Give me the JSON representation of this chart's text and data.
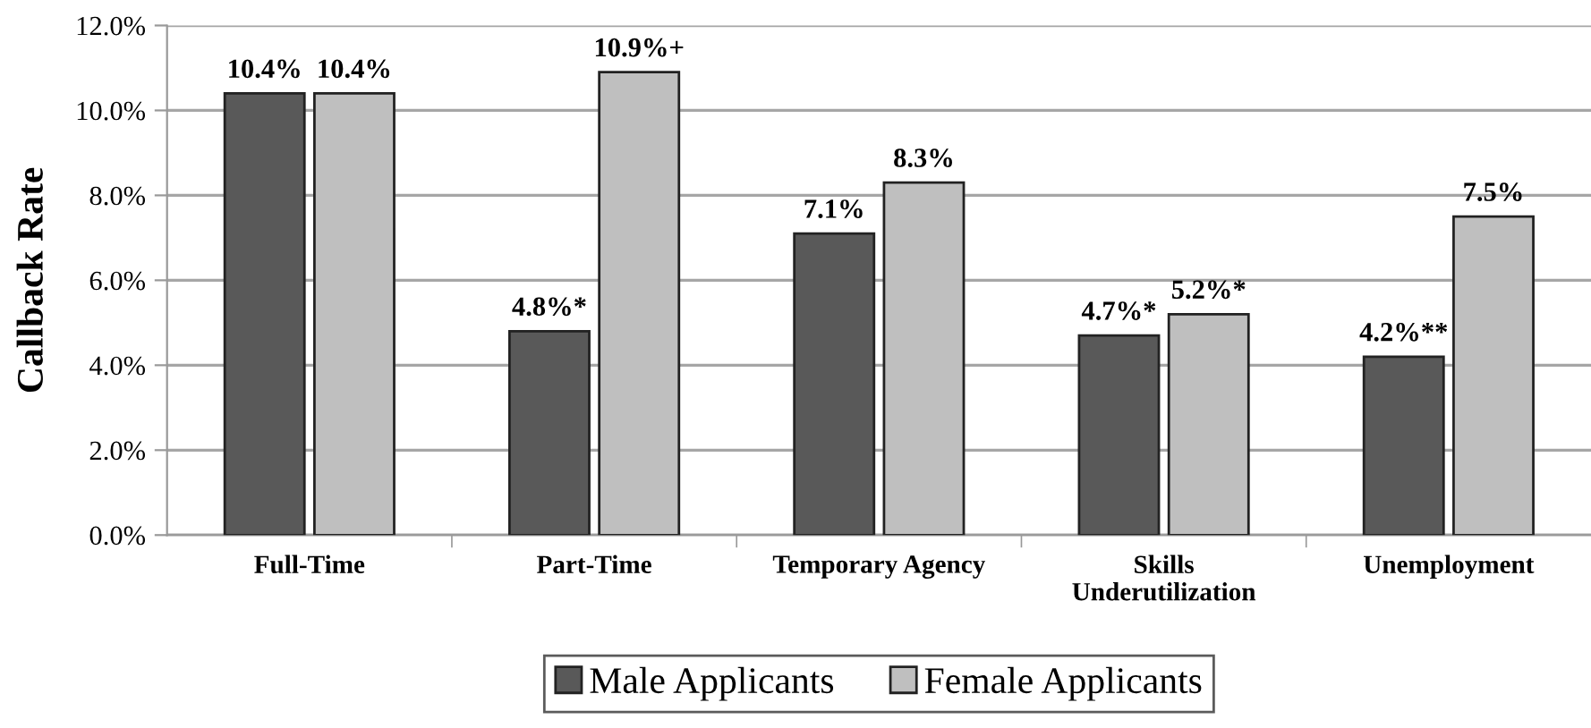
{
  "chart_data": {
    "type": "bar",
    "ylabel": "Callback Rate",
    "categories": [
      "Full-Time",
      "Part-Time",
      "Temporary Agency",
      "Skills\nUnderutilization",
      "Unemployment"
    ],
    "series": [
      {
        "name": "Male Applicants",
        "color": "#595959",
        "values": [
          10.4,
          4.8,
          7.1,
          4.7,
          4.2
        ],
        "value_labels": [
          "10.4%",
          "4.8%*",
          "7.1%",
          "4.7%*",
          "4.2%**"
        ]
      },
      {
        "name": "Female Applicants",
        "color": "#bfbfbf",
        "values": [
          10.4,
          10.9,
          8.3,
          5.2,
          7.5
        ],
        "value_labels": [
          "10.4%",
          "10.9%+",
          "8.3%",
          "5.2%*",
          "7.5%"
        ]
      }
    ],
    "ylim": [
      0,
      12
    ],
    "yticks": [
      {
        "value": 0,
        "label": "0.0%"
      },
      {
        "value": 2,
        "label": "2.0%"
      },
      {
        "value": 4,
        "label": "4.0%"
      },
      {
        "value": 6,
        "label": "6.0%"
      },
      {
        "value": 8,
        "label": "8.0%"
      },
      {
        "value": 10,
        "label": "10.0%"
      },
      {
        "value": 12,
        "label": "12.0%"
      }
    ],
    "grid": "y",
    "legend": "bottom"
  }
}
